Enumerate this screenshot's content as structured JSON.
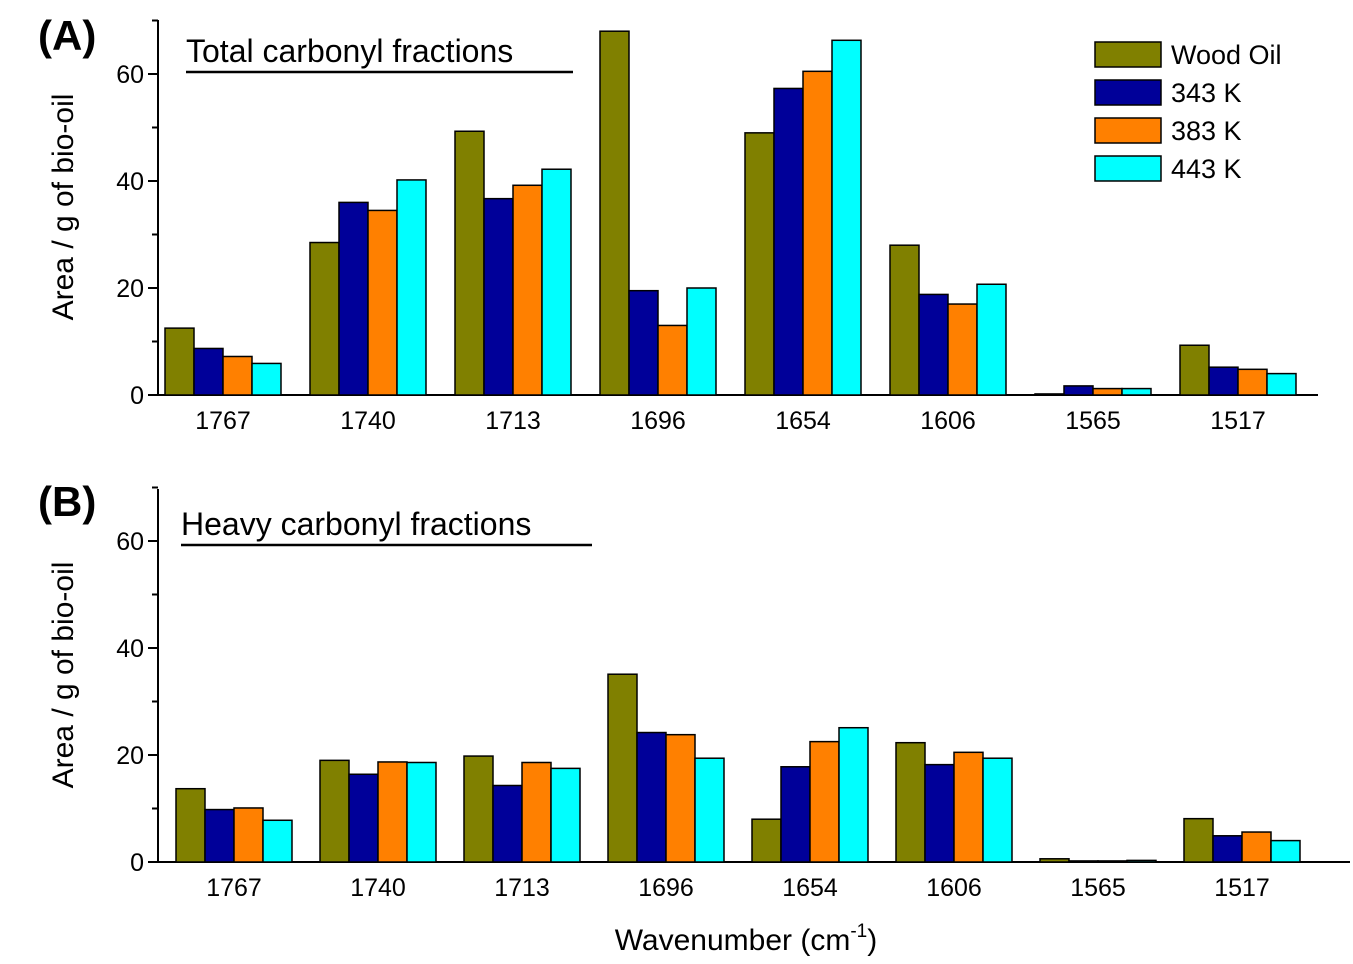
{
  "figure": {
    "xlabel": "Wavenumber (cm",
    "xlabel_sup": "-1",
    "xlabel_close": ")"
  },
  "legend": {
    "entries": [
      {
        "label": "Wood Oil",
        "color": "#808000"
      },
      {
        "label": "343 K",
        "color": "#000099"
      },
      {
        "label": "383 K",
        "color": "#FF8000"
      },
      {
        "label": "443 K",
        "color": "#00FFFF"
      }
    ]
  },
  "chart_data": [
    {
      "type": "bar",
      "panel_label": "(A)",
      "title": "Total carbonyl fractions",
      "ylabel": "Area / g of bio-oil",
      "xlabel": "",
      "categories": [
        "1767",
        "1740",
        "1713",
        "1696",
        "1654",
        "1606",
        "1565",
        "1517"
      ],
      "ylim": [
        0,
        70
      ],
      "yticks": [
        0,
        20,
        40,
        60
      ],
      "grid": false,
      "legend_position": "top-right",
      "series": [
        {
          "name": "Wood Oil",
          "color": "#808000",
          "values": [
            12.5,
            28.5,
            49.3,
            68.0,
            49.0,
            28.0,
            0.2,
            9.3
          ]
        },
        {
          "name": "343 K",
          "color": "#000099",
          "values": [
            8.7,
            36.0,
            36.7,
            19.5,
            57.3,
            18.8,
            1.7,
            5.2
          ]
        },
        {
          "name": "383 K",
          "color": "#FF8000",
          "values": [
            7.2,
            34.5,
            39.2,
            13.0,
            60.5,
            17.0,
            1.2,
            4.8
          ]
        },
        {
          "name": "443 K",
          "color": "#00FFFF",
          "values": [
            5.9,
            40.2,
            42.2,
            20.0,
            66.3,
            20.7,
            1.2,
            4.0
          ]
        }
      ]
    },
    {
      "type": "bar",
      "panel_label": "(B)",
      "title": "Heavy carbonyl fractions",
      "ylabel": "Area / g of bio-oil",
      "xlabel": "Wavenumber (cm-1)",
      "categories": [
        "1767",
        "1740",
        "1713",
        "1696",
        "1654",
        "1606",
        "1565",
        "1517"
      ],
      "ylim": [
        0,
        70
      ],
      "yticks": [
        0,
        20,
        40,
        60
      ],
      "grid": false,
      "legend_position": "none",
      "series": [
        {
          "name": "Wood Oil",
          "color": "#808000",
          "values": [
            13.7,
            19.0,
            19.8,
            35.1,
            8.0,
            22.3,
            0.6,
            8.1
          ]
        },
        {
          "name": "343 K",
          "color": "#000099",
          "values": [
            9.8,
            16.4,
            14.3,
            24.2,
            17.8,
            18.2,
            0.2,
            4.9
          ]
        },
        {
          "name": "383 K",
          "color": "#FF8000",
          "values": [
            10.1,
            18.7,
            18.6,
            23.8,
            22.5,
            20.5,
            0.2,
            5.6
          ]
        },
        {
          "name": "443 K",
          "color": "#00FFFF",
          "values": [
            7.8,
            18.6,
            17.5,
            19.4,
            25.1,
            19.4,
            0.3,
            4.0
          ]
        }
      ]
    }
  ]
}
